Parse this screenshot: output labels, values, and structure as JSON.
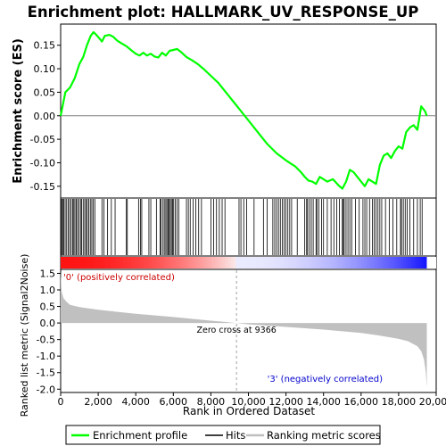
{
  "title": "Enrichment plot: HALLMARK_UV_RESPONSE_UP",
  "legend": {
    "items": [
      {
        "label": "Enrichment profile",
        "color": "#00ff00"
      },
      {
        "label": "Hits",
        "color": "#000000"
      },
      {
        "label": "Ranking metric scores",
        "color": "#c0c0c0"
      }
    ]
  },
  "colors": {
    "enrichment_line": "#00ff00",
    "hits": "#000000",
    "metric_fill": "#c0c0c0",
    "positive_label": "#cc0000",
    "negative_label": "#0000cc",
    "axis": "#000000"
  },
  "chart_data": [
    {
      "type": "line",
      "name": "enrichment-profile",
      "ylabel": "Enrichment score (ES)",
      "xlim": [
        0,
        20000
      ],
      "ylim": [
        -0.175,
        0.195
      ],
      "yticks": [
        -0.15,
        -0.1,
        -0.05,
        0.0,
        0.05,
        0.1,
        0.15
      ],
      "ytick_labels": [
        "-0.15",
        "-0.10",
        "-0.05",
        "0.00",
        "0.05",
        "0.10",
        "0.15"
      ],
      "zero_line": true,
      "x": [
        0,
        250,
        500,
        750,
        1000,
        1200,
        1400,
        1600,
        1750,
        1900,
        2050,
        2200,
        2350,
        2600,
        2800,
        3000,
        3200,
        3500,
        3800,
        4000,
        4200,
        4400,
        4600,
        4800,
        5000,
        5200,
        5400,
        5600,
        5800,
        6000,
        6200,
        6400,
        6700,
        7000,
        7300,
        7600,
        8000,
        8400,
        8800,
        9200,
        9600,
        10000,
        10500,
        11000,
        11500,
        12000,
        12500,
        12800,
        13000,
        13200,
        13400,
        13600,
        13800,
        14000,
        14200,
        14500,
        14800,
        15000,
        15200,
        15400,
        15600,
        15800,
        16000,
        16200,
        16400,
        16600,
        16800,
        17000,
        17200,
        17400,
        17600,
        17800,
        18000,
        18200,
        18400,
        18600,
        18800,
        19000,
        19200,
        19400,
        19500
      ],
      "y": [
        0.0,
        0.05,
        0.06,
        0.08,
        0.11,
        0.125,
        0.15,
        0.17,
        0.178,
        0.172,
        0.165,
        0.158,
        0.17,
        0.172,
        0.168,
        0.16,
        0.155,
        0.148,
        0.138,
        0.132,
        0.128,
        0.134,
        0.128,
        0.132,
        0.126,
        0.124,
        0.134,
        0.128,
        0.138,
        0.14,
        0.142,
        0.136,
        0.125,
        0.118,
        0.11,
        0.1,
        0.085,
        0.07,
        0.05,
        0.03,
        0.01,
        -0.01,
        -0.035,
        -0.06,
        -0.08,
        -0.095,
        -0.108,
        -0.12,
        -0.13,
        -0.138,
        -0.14,
        -0.145,
        -0.13,
        -0.135,
        -0.14,
        -0.135,
        -0.148,
        -0.155,
        -0.14,
        -0.115,
        -0.12,
        -0.13,
        -0.14,
        -0.15,
        -0.135,
        -0.14,
        -0.145,
        -0.105,
        -0.085,
        -0.08,
        -0.09,
        -0.075,
        -0.065,
        -0.07,
        -0.035,
        -0.025,
        -0.02,
        -0.03,
        0.02,
        0.01,
        0.0
      ]
    },
    {
      "type": "scatter",
      "name": "hits",
      "xlim": [
        0,
        20000
      ],
      "x": [
        20,
        60,
        110,
        170,
        240,
        320,
        400,
        480,
        560,
        640,
        700,
        760,
        830,
        900,
        980,
        1060,
        1120,
        1200,
        1280,
        1350,
        1420,
        1500,
        1580,
        1660,
        1740,
        1820,
        2200,
        2300,
        2500,
        2700,
        2900,
        3500,
        3550,
        4150,
        4250,
        4320,
        4700,
        4800,
        5100,
        5300,
        5350,
        5450,
        5520,
        5600,
        5660,
        5720,
        5780,
        5840,
        5900,
        5960,
        6020,
        6100,
        6200,
        6300,
        6700,
        6800,
        6900,
        7050,
        7200,
        7350,
        7500,
        8000,
        8150,
        8300,
        8450,
        8600,
        8750,
        9500,
        9600,
        9750,
        9900,
        10300,
        10800,
        11000,
        11300,
        11400,
        11500,
        11600,
        11700,
        11800,
        11900,
        12000,
        12100,
        12200,
        12300,
        12600,
        13000,
        13100,
        13150,
        13250,
        13350,
        13450,
        13600,
        13650,
        13750,
        13900,
        14000,
        14200,
        14400,
        14550,
        14700,
        14850,
        15000,
        15050,
        15100,
        15200,
        15300,
        15400,
        15500,
        15700,
        15900,
        16100,
        16200,
        16300,
        16450,
        16600,
        16700,
        16800,
        16900,
        17000,
        17100,
        17300,
        17500,
        17700,
        17900,
        18100,
        18150,
        18250,
        18350,
        18450,
        18600,
        18800,
        19000,
        19150,
        19250
      ]
    },
    {
      "type": "area",
      "name": "ranked-list-metric",
      "xlabel": "Rank in Ordered Dataset",
      "ylabel": "Ranked list metric (Signal2Noise)",
      "xlim": [
        0,
        20000
      ],
      "ylim": [
        -2.1,
        1.62
      ],
      "xticks": [
        0,
        2000,
        4000,
        6000,
        8000,
        10000,
        12000,
        14000,
        16000,
        18000,
        20000
      ],
      "xtick_labels": [
        "0",
        "2,000",
        "4,000",
        "6,000",
        "8,000",
        "10,000",
        "12,000",
        "14,000",
        "16,000",
        "18,000",
        "20,000"
      ],
      "yticks": [
        -2.0,
        -1.5,
        -1.0,
        -0.5,
        0.0,
        0.5,
        1.0,
        1.5
      ],
      "ytick_labels": [
        "-2.0",
        "-1.5",
        "-1.0",
        "-0.5",
        "0.0",
        "0.5",
        "1.0",
        "1.5"
      ],
      "x": [
        0,
        50,
        150,
        300,
        500,
        1000,
        2000,
        4000,
        6000,
        8000,
        9366,
        10000,
        12000,
        14000,
        16000,
        17000,
        18000,
        18500,
        19000,
        19200,
        19350,
        19450,
        19500
      ],
      "y": [
        1.55,
        0.95,
        0.75,
        0.65,
        0.55,
        0.48,
        0.4,
        0.28,
        0.18,
        0.07,
        0.0,
        -0.04,
        -0.12,
        -0.2,
        -0.3,
        -0.38,
        -0.48,
        -0.55,
        -0.7,
        -0.85,
        -1.1,
        -1.5,
        -1.95
      ],
      "annotations": {
        "positive": "'0' (positively correlated)",
        "zero_cross": "Zero cross at 9366",
        "negative": "'3' (negatively correlated)"
      },
      "zero_cross": 9366,
      "total_ranks": 19500
    }
  ]
}
